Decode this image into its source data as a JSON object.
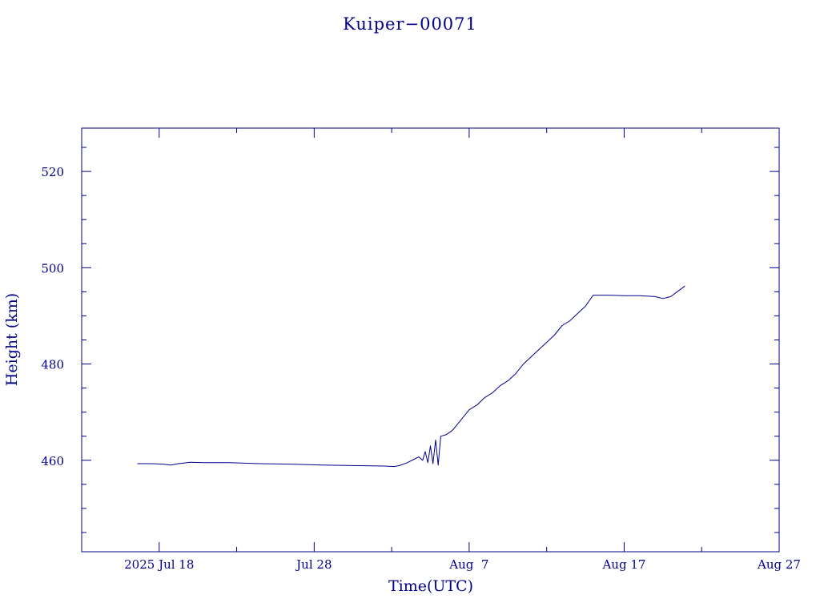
{
  "chart_data": {
    "type": "line",
    "title": "Kuiper−00071",
    "xlabel": "Time(UTC)",
    "ylabel": "Height (km)",
    "x_axis": {
      "type": "date",
      "range": [
        "2025-07-13",
        "2025-08-27"
      ],
      "tick_labels": [
        "2025 Jul 18",
        "Jul 28",
        "Aug  7",
        "Aug 17",
        "Aug 27"
      ],
      "tick_dates": [
        "2025-07-18",
        "2025-07-28",
        "2025-08-07",
        "2025-08-17",
        "2025-08-27"
      ]
    },
    "y_axis": {
      "range": [
        441,
        529
      ],
      "tick_labels": [
        "460",
        "480",
        "500",
        "520"
      ],
      "tick_values": [
        460,
        480,
        500,
        520
      ]
    },
    "grid": false,
    "color": "#00008b",
    "series": [
      {
        "points": [
          [
            "2025-07-16T14:00",
            459.3
          ],
          [
            "2025-07-17T12:00",
            459.3
          ],
          [
            "2025-07-18T06:00",
            459.2
          ],
          [
            "2025-07-18T18:00",
            459.0
          ],
          [
            "2025-07-19T06:00",
            459.3
          ],
          [
            "2025-07-20T00:00",
            459.6
          ],
          [
            "2025-07-21T00:00",
            459.5
          ],
          [
            "2025-07-22T12:00",
            459.5
          ],
          [
            "2025-07-24T12:00",
            459.3
          ],
          [
            "2025-07-26T12:00",
            459.2
          ],
          [
            "2025-07-28T12:00",
            459.0
          ],
          [
            "2025-07-30T12:00",
            458.9
          ],
          [
            "2025-08-01T12:00",
            458.8
          ],
          [
            "2025-08-02T04:00",
            458.7
          ],
          [
            "2025-08-02T12:00",
            458.9
          ],
          [
            "2025-08-03T00:00",
            459.5
          ],
          [
            "2025-08-03T12:00",
            460.3
          ],
          [
            "2025-08-03T18:00",
            460.7
          ],
          [
            "2025-08-04T00:00",
            460.0
          ],
          [
            "2025-08-04T04:00",
            461.8
          ],
          [
            "2025-08-04T08:00",
            459.5
          ],
          [
            "2025-08-04T12:00",
            463.0
          ],
          [
            "2025-08-04T16:00",
            459.3
          ],
          [
            "2025-08-04T20:00",
            464.2
          ],
          [
            "2025-08-05T00:00",
            459.0
          ],
          [
            "2025-08-05T04:00",
            465.0
          ],
          [
            "2025-08-05T12:00",
            465.3
          ],
          [
            "2025-08-05T20:00",
            466.0
          ],
          [
            "2025-08-06T00:00",
            466.5
          ],
          [
            "2025-08-06T12:00",
            468.5
          ],
          [
            "2025-08-07T00:00",
            470.5
          ],
          [
            "2025-08-07T12:00",
            471.5
          ],
          [
            "2025-08-08T00:00",
            473.0
          ],
          [
            "2025-08-08T12:00",
            474.0
          ],
          [
            "2025-08-09T00:00",
            475.5
          ],
          [
            "2025-08-09T12:00",
            476.5
          ],
          [
            "2025-08-10T00:00",
            478.0
          ],
          [
            "2025-08-10T12:00",
            480.0
          ],
          [
            "2025-08-11T00:00",
            481.5
          ],
          [
            "2025-08-11T12:00",
            483.0
          ],
          [
            "2025-08-12T00:00",
            484.5
          ],
          [
            "2025-08-12T12:00",
            486.0
          ],
          [
            "2025-08-13T00:00",
            488.0
          ],
          [
            "2025-08-13T12:00",
            489.0
          ],
          [
            "2025-08-14T00:00",
            490.5
          ],
          [
            "2025-08-14T12:00",
            492.0
          ],
          [
            "2025-08-15T00:00",
            494.3
          ],
          [
            "2025-08-16T00:00",
            494.3
          ],
          [
            "2025-08-17T00:00",
            494.2
          ],
          [
            "2025-08-18T00:00",
            494.2
          ],
          [
            "2025-08-19T00:00",
            494.0
          ],
          [
            "2025-08-19T12:00",
            493.6
          ],
          [
            "2025-08-20T00:00",
            494.0
          ],
          [
            "2025-08-20T12:00",
            495.2
          ],
          [
            "2025-08-20T22:00",
            496.2
          ]
        ]
      }
    ]
  }
}
